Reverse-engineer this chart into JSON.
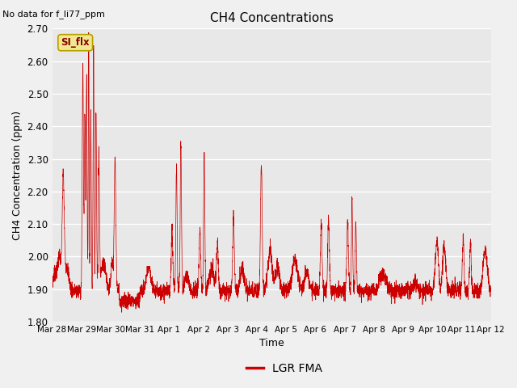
{
  "title": "CH4 Concentrations",
  "ylabel": "CH4 Concentration (ppm)",
  "xlabel": "Time",
  "top_left_text": "No data for f_li77_ppm",
  "legend_label": "LGR FMA",
  "legend_color": "#cc0000",
  "line_color": "#cc0000",
  "ylim": [
    1.8,
    2.7
  ],
  "yticks": [
    1.8,
    1.9,
    2.0,
    2.1,
    2.2,
    2.3,
    2.4,
    2.5,
    2.6,
    2.7
  ],
  "xtick_labels": [
    "Mar 28",
    "Mar 29",
    "Mar 30",
    "Mar 31",
    "Apr 1",
    "Apr 2",
    "Apr 3",
    "Apr 4",
    "Apr 5",
    "Apr 6",
    "Apr 7",
    "Apr 8",
    "Apr 9",
    "Apr 10",
    "Apr 11",
    "Apr 12"
  ],
  "si_flx_label": "SI_flx",
  "n_days": 15,
  "base": 1.895,
  "noise_std": 0.012
}
